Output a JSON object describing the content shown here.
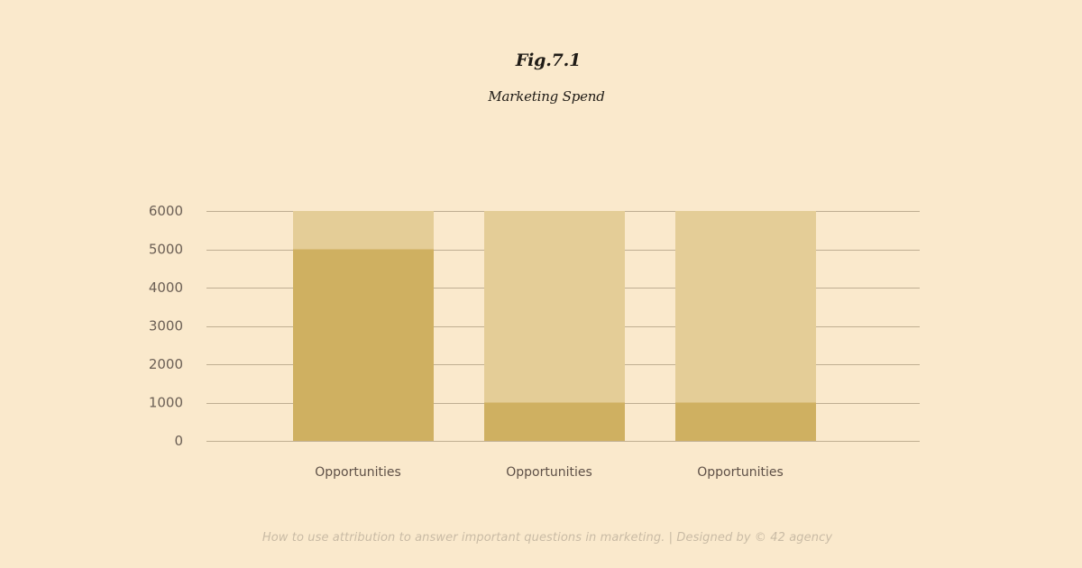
{
  "figure_label": "Fig.7.1",
  "footer": "How to use attribution to answer important questions in marketing. | Designed by © 42 agency",
  "colors": {
    "background": "#FAE9CC",
    "bar_primary": "#CFB061",
    "bar_remainder": "#E4CD97",
    "gridline": "#BFAE92",
    "axis_text": "#6B5F55"
  },
  "chart_data": {
    "type": "bar",
    "stacked": true,
    "title": "Marketing Spend",
    "xlabel": "",
    "ylabel": "",
    "categories": [
      "Opportunities",
      "Opportunities",
      "Opportunities"
    ],
    "series": [
      {
        "values": [
          5000,
          1000,
          1000
        ],
        "color": "#CFB061"
      },
      {
        "values": [
          1000,
          5000,
          5000
        ],
        "color": "#E4CD97"
      }
    ],
    "ylim": [
      0,
      6000
    ],
    "yticks": [
      0,
      1000,
      2000,
      3000,
      4000,
      5000,
      6000
    ],
    "grid": true,
    "legend": "none"
  }
}
